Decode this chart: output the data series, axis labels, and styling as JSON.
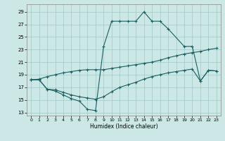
{
  "background_color": "#cce8e6",
  "grid_color": "#a0c8c6",
  "line_color": "#1a6060",
  "xlabel": "Humidex (Indice chaleur)",
  "xlim": [
    -0.5,
    23.5
  ],
  "ylim": [
    12.5,
    30.2
  ],
  "xticks": [
    0,
    1,
    2,
    3,
    4,
    5,
    6,
    7,
    8,
    9,
    10,
    11,
    12,
    13,
    14,
    15,
    16,
    17,
    18,
    19,
    20,
    21,
    22,
    23
  ],
  "yticks": [
    13,
    15,
    17,
    19,
    21,
    23,
    25,
    27,
    29
  ],
  "curve1_x": [
    0,
    1,
    2,
    3,
    4,
    5,
    6,
    7,
    8,
    9,
    10,
    11,
    12,
    13,
    14,
    15,
    16,
    17,
    19,
    20,
    21,
    22,
    23
  ],
  "curve1_y": [
    18.2,
    18.2,
    16.7,
    16.4,
    15.8,
    15.2,
    14.8,
    13.5,
    13.3,
    23.5,
    27.5,
    27.5,
    27.5,
    27.5,
    29.0,
    27.5,
    27.5,
    26.3,
    23.5,
    23.5,
    18.0,
    19.7,
    19.6
  ],
  "curve2_x": [
    0,
    1,
    2,
    3,
    4,
    5,
    6,
    7,
    8,
    9,
    10,
    11,
    12,
    13,
    14,
    15,
    16,
    17,
    18,
    19,
    20,
    21,
    22,
    23
  ],
  "curve2_y": [
    18.2,
    18.3,
    18.7,
    19.0,
    19.3,
    19.5,
    19.7,
    19.8,
    19.8,
    19.8,
    20.0,
    20.2,
    20.4,
    20.6,
    20.8,
    21.0,
    21.3,
    21.7,
    22.0,
    22.3,
    22.5,
    22.7,
    23.0,
    23.2
  ],
  "curve3_x": [
    0,
    1,
    2,
    3,
    4,
    5,
    6,
    7,
    8,
    9,
    10,
    11,
    12,
    13,
    14,
    15,
    16,
    17,
    18,
    19,
    20,
    21,
    22,
    23
  ],
  "curve3_y": [
    18.2,
    18.2,
    16.7,
    16.6,
    16.2,
    15.8,
    15.5,
    15.3,
    15.1,
    15.5,
    16.3,
    17.0,
    17.4,
    17.8,
    18.3,
    18.7,
    19.0,
    19.3,
    19.5,
    19.7,
    19.9,
    18.0,
    19.7,
    19.6
  ],
  "lw": 0.8,
  "ms": 2.5,
  "mew": 0.8
}
